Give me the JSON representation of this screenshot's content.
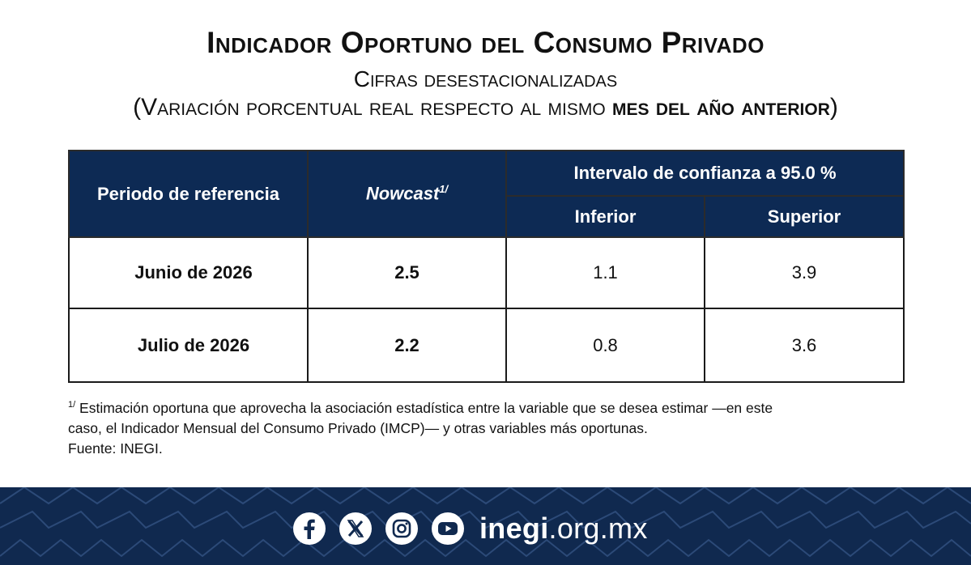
{
  "header": {
    "title": "Indicador Oportuno del Consumo Privado",
    "subtitle": "Cifras desestacionalizadas",
    "subtitle2_plain": "(Variación porcentual real respecto al mismo ",
    "subtitle2_bold": "mes del año anterior",
    "subtitle2_close": ")"
  },
  "table": {
    "col_period": "Periodo de referencia",
    "col_nowcast": "Nowcast",
    "col_nowcast_note": "1/",
    "col_interval": "Intervalo de confianza a 95.0 %",
    "col_lower": "Inferior",
    "col_upper": "Superior",
    "rows": [
      {
        "period": "Junio de 2026",
        "nowcast": "2.5",
        "lower": "1.1",
        "upper": "3.9"
      },
      {
        "period": "Julio de 2026",
        "nowcast": "2.2",
        "lower": "0.8",
        "upper": "3.6"
      }
    ]
  },
  "note": {
    "marker": "1/",
    "line1": " Estimación oportuna que aprovecha la asociación estadística entre la variable que se desea estimar —en este",
    "line2": "caso, el Indicador Mensual del Consumo Privado (IMCP)— y otras variables más oportunas.",
    "source": "Fuente: INEGI."
  },
  "footer": {
    "site_bold": "inegi",
    "site_rest": ".org.mx",
    "icons": [
      "facebook-icon",
      "x-icon",
      "instagram-icon",
      "youtube-icon"
    ],
    "colors": {
      "band": "#10294f",
      "header": "#0d2a54",
      "pattern": "#2c4a78"
    }
  }
}
